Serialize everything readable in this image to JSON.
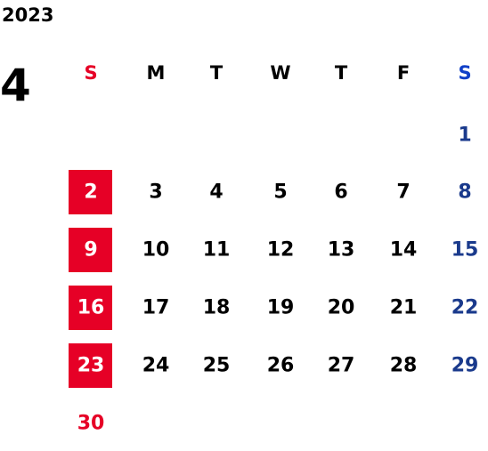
{
  "year": "2023",
  "month": "4",
  "weekdays": [
    "S",
    "M",
    "T",
    "W",
    "T",
    "F",
    "S"
  ],
  "weeks": [
    [
      null,
      null,
      null,
      null,
      null,
      null,
      1
    ],
    [
      2,
      3,
      4,
      5,
      6,
      7,
      8
    ],
    [
      9,
      10,
      11,
      12,
      13,
      14,
      15
    ],
    [
      16,
      17,
      18,
      19,
      20,
      21,
      22
    ],
    [
      23,
      24,
      25,
      26,
      27,
      28,
      29
    ],
    [
      30,
      null,
      null,
      null,
      null,
      null,
      null
    ]
  ]
}
